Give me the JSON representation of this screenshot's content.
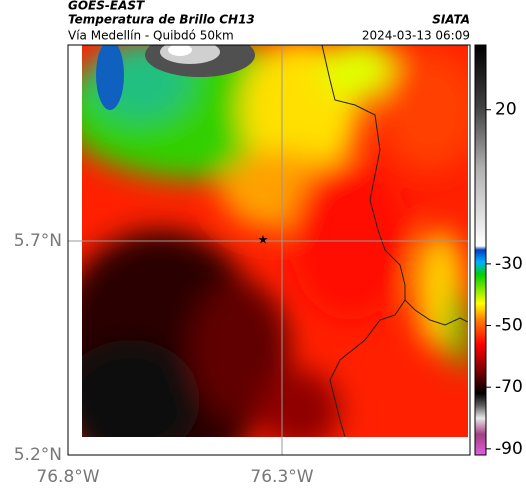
{
  "header": {
    "source": "GOES-EAST",
    "product": "Temperatura de Brillo CH13",
    "agency": "SIATA",
    "route": "Vía Medellín - Quibdó 50km",
    "datetime": "2024-03-13 06:09"
  },
  "axes": {
    "lat_labels": [
      "5.7°N",
      "5.2°N"
    ],
    "lon_labels": [
      "76.8°W",
      "76.3°W"
    ]
  },
  "colorbar": {
    "lim": [
      -92,
      41
    ],
    "ticks": [
      20,
      -30,
      -50,
      -70,
      -90
    ]
  }
}
